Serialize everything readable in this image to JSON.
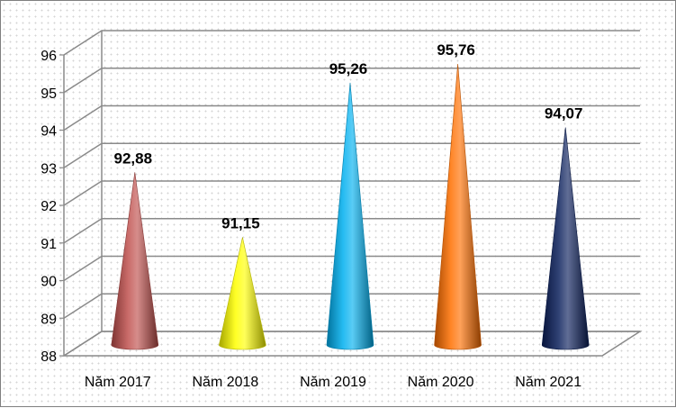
{
  "chart_data": {
    "type": "bar",
    "shape": "cone",
    "three_d": true,
    "categories": [
      "Năm 2017",
      "Năm 2018",
      "Năm 2019",
      "Năm 2020",
      "Năm 2021"
    ],
    "values": [
      92.88,
      91.15,
      95.26,
      95.76,
      94.07
    ],
    "data_labels": [
      "92,88",
      "91,15",
      "95,26",
      "95,76",
      "94,07"
    ],
    "ylim": [
      88,
      96
    ],
    "yticks": [
      88,
      89,
      90,
      91,
      92,
      93,
      94,
      95,
      96
    ],
    "ytick_labels": [
      "88",
      "89",
      "90",
      "91",
      "92",
      "93",
      "94",
      "95",
      "96"
    ],
    "colors": [
      "#c0504d",
      "#ffff00",
      "#00b0f0",
      "#ff6f00",
      "#0a1f5c"
    ],
    "grid": true,
    "legend": "none",
    "title": "",
    "xlabel": "",
    "ylabel": ""
  }
}
